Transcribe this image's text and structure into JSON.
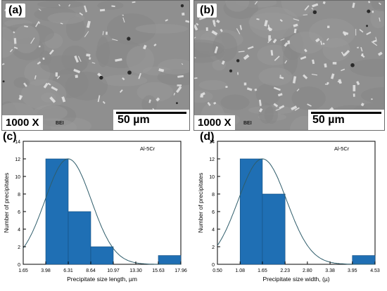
{
  "panels": {
    "a": {
      "label": "(a)",
      "magnification": "1000 X",
      "mode": "BEI",
      "scale": "50 µm"
    },
    "b": {
      "label": "(b)",
      "magnification": "1000 X",
      "mode": "BEI",
      "scale": "50 µm"
    },
    "c": {
      "label": "(c)"
    },
    "d": {
      "label": "(d)"
    }
  },
  "chart_data": [
    {
      "type": "bar",
      "annotation": "Al-5Cr",
      "xlabel": "Precipitate size length, µm",
      "ylabel": "Number of precipitates",
      "x_ticks": [
        "1.65",
        "3.98",
        "6.31",
        "8.64",
        "10.97",
        "13.30",
        "15.63",
        "17.96"
      ],
      "xlim": [
        1.65,
        17.96
      ],
      "ylim": [
        0,
        14
      ],
      "y_ticks": [
        0,
        2,
        4,
        6,
        8,
        10,
        12,
        14
      ],
      "bins": [
        {
          "from": 3.98,
          "to": 6.31,
          "value": 12
        },
        {
          "from": 6.31,
          "to": 8.64,
          "value": 6
        },
        {
          "from": 8.64,
          "to": 10.97,
          "value": 2
        },
        {
          "from": 15.63,
          "to": 17.96,
          "value": 1
        }
      ],
      "fit_curve": {
        "type": "normal",
        "mean": 6.3,
        "sd": 2.4,
        "peak": 12
      },
      "bar_color": "#1f6fb4",
      "curve_color": "#2f5d6b"
    },
    {
      "type": "bar",
      "annotation": "Al-5Cr",
      "xlabel": "Precipitate size width, (µ)",
      "ylabel": "Number of precipitates",
      "x_ticks": [
        "0.50",
        "1.08",
        "1.65",
        "2.23",
        "2.80",
        "3.38",
        "3.95",
        "4.53"
      ],
      "xlim": [
        0.5,
        4.53
      ],
      "ylim": [
        0,
        14
      ],
      "y_ticks": [
        0,
        2,
        4,
        6,
        8,
        10,
        12,
        14
      ],
      "bins": [
        {
          "from": 1.08,
          "to": 1.65,
          "value": 12
        },
        {
          "from": 1.65,
          "to": 2.23,
          "value": 8
        },
        {
          "from": 3.95,
          "to": 4.53,
          "value": 1
        }
      ],
      "fit_curve": {
        "type": "normal",
        "mean": 1.65,
        "sd": 0.62,
        "peak": 12
      },
      "bar_color": "#1f6fb4",
      "curve_color": "#2f5d6b"
    }
  ]
}
